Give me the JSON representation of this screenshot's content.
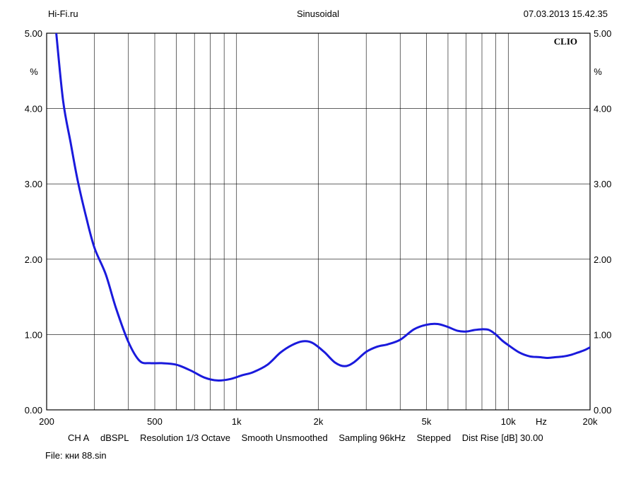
{
  "header": {
    "left": "Hi-Fi.ru",
    "center": "Sinusoidal",
    "right": "07.03.2013 15.42.35"
  },
  "brand": "CLIO",
  "chart_data": {
    "type": "line",
    "xscale": "log",
    "xlim": [
      200,
      20000
    ],
    "ylim": [
      0,
      5
    ],
    "grid": true,
    "y_unit": "%",
    "x_unit": "Hz",
    "y_ticks": [
      {
        "value": 0,
        "label": "0.00"
      },
      {
        "value": 1,
        "label": "1.00"
      },
      {
        "value": 2,
        "label": "2.00"
      },
      {
        "value": 3,
        "label": "3.00"
      },
      {
        "value": 4,
        "label": "4.00"
      },
      {
        "value": 5,
        "label": "5.00"
      }
    ],
    "x_ticks": [
      {
        "value": 200,
        "label": "200"
      },
      {
        "value": 500,
        "label": "500"
      },
      {
        "value": 1000,
        "label": "1k"
      },
      {
        "value": 2000,
        "label": "2k"
      },
      {
        "value": 5000,
        "label": "5k"
      },
      {
        "value": 10000,
        "label": "10k"
      },
      {
        "value": 20000,
        "label": "20k"
      }
    ],
    "x_gridlines": [
      300,
      400,
      500,
      600,
      700,
      800,
      900,
      1000,
      2000,
      3000,
      4000,
      5000,
      6000,
      7000,
      8000,
      9000,
      10000
    ],
    "series": [
      {
        "color": "#1a1adc",
        "x": [
          217,
          230,
          245,
          260,
          280,
          300,
          330,
          360,
          400,
          440,
          480,
          530,
          600,
          680,
          760,
          850,
          950,
          1050,
          1150,
          1300,
          1450,
          1600,
          1750,
          1900,
          2100,
          2300,
          2500,
          2700,
          3000,
          3300,
          3600,
          4000,
          4500,
          5000,
          5500,
          6000,
          6500,
          7000,
          7500,
          8000,
          8500,
          9000,
          9500,
          10000,
          11000,
          12000,
          13000,
          14000,
          15000,
          16000,
          17000,
          18000,
          19000,
          20000
        ],
        "y": [
          5.0,
          4.1,
          3.55,
          3.05,
          2.55,
          2.15,
          1.8,
          1.35,
          0.9,
          0.65,
          0.62,
          0.62,
          0.6,
          0.52,
          0.43,
          0.39,
          0.41,
          0.46,
          0.5,
          0.6,
          0.76,
          0.86,
          0.91,
          0.89,
          0.77,
          0.63,
          0.58,
          0.63,
          0.77,
          0.84,
          0.87,
          0.93,
          1.07,
          1.13,
          1.14,
          1.1,
          1.05,
          1.04,
          1.06,
          1.07,
          1.06,
          1.0,
          0.92,
          0.86,
          0.76,
          0.71,
          0.7,
          0.69,
          0.7,
          0.71,
          0.73,
          0.76,
          0.79,
          0.83
        ]
      }
    ]
  },
  "footer": {
    "settings": [
      "CH A",
      "dBSPL",
      "Resolution 1/3 Octave",
      "Smooth Unsmoothed",
      "Sampling 96kHz",
      "Stepped",
      "Dist Rise [dB] 30.00"
    ],
    "file": "File: кни 88.sin"
  }
}
